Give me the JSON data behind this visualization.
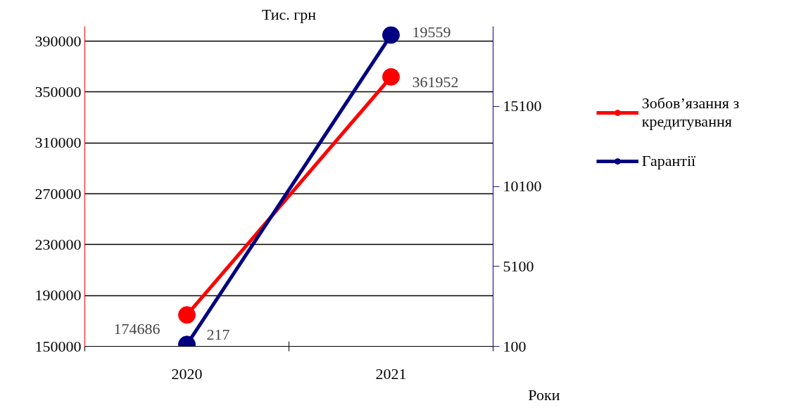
{
  "chart_data": {
    "type": "line",
    "ylabel": "Тис. грн",
    "xlabel": "Роки",
    "categories": [
      "2020",
      "2021"
    ],
    "series": [
      {
        "name": "Зобов’язання з кредитування",
        "color": "#ff0000",
        "values": [
          174686,
          361952
        ]
      },
      {
        "name": "Гарантії",
        "color": "#000080",
        "values": [
          217,
          19559
        ],
        "axis": "y2"
      }
    ],
    "ylim": [
      150000,
      401700
    ],
    "yticks": [
      150000,
      190000,
      230000,
      270000,
      310000,
      350000,
      390000
    ],
    "y2lim": [
      100,
      20100
    ],
    "y2ticks": [
      100,
      5100,
      10100,
      15100
    ],
    "grid": "y",
    "legend": "right",
    "marker": "circle",
    "line_style": "solid",
    "data_labels": true
  }
}
